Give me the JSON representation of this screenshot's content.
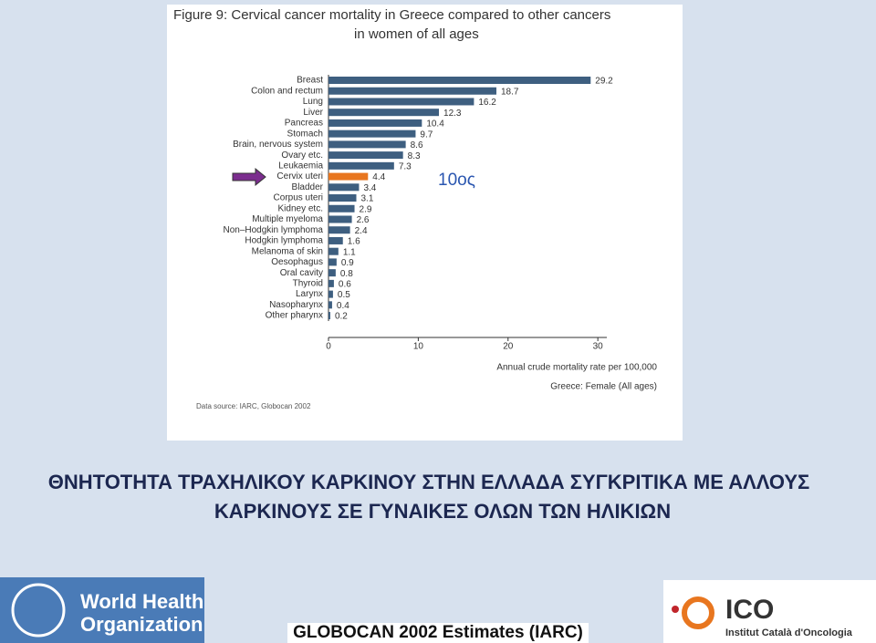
{
  "chart_data": {
    "type": "barh",
    "title": [
      "Figure 9: Cervical cancer mortality in Greece compared to other cancers",
      "in women of all ages"
    ],
    "categories": [
      "Breast",
      "Colon and rectum",
      "Lung",
      "Liver",
      "Pancreas",
      "Stomach",
      "Brain, nervous system",
      "Ovary etc.",
      "Leukaemia",
      "Cervix uteri",
      "Bladder",
      "Corpus uteri",
      "Kidney etc.",
      "Multiple myeloma",
      "Non–Hodgkin lymphoma",
      "Hodgkin lymphoma",
      "Melanoma of skin",
      "Oesophagus",
      "Oral cavity",
      "Thyroid",
      "Larynx",
      "Nasopharynx",
      "Other pharynx"
    ],
    "values": [
      29.2,
      18.7,
      16.2,
      12.3,
      10.4,
      9.7,
      8.6,
      8.3,
      7.3,
      4.4,
      3.4,
      3.1,
      2.9,
      2.6,
      2.4,
      1.6,
      1.1,
      0.9,
      0.8,
      0.6,
      0.5,
      0.4,
      0.2
    ],
    "colors": [
      "#3e5f80",
      "#3e5f80",
      "#3e5f80",
      "#3e5f80",
      "#3e5f80",
      "#3e5f80",
      "#3e5f80",
      "#3e5f80",
      "#3e5f80",
      "#e8761f",
      "#3e5f80",
      "#3e5f80",
      "#3e5f80",
      "#3e5f80",
      "#3e5f80",
      "#3e5f80",
      "#3e5f80",
      "#3e5f80",
      "#3e5f80",
      "#3e5f80",
      "#3e5f80",
      "#3e5f80",
      "#3e5f80"
    ],
    "xlim": [
      0,
      31
    ],
    "xticks": [
      0,
      10,
      20,
      30
    ],
    "xlabel": "Annual crude mortality rate per 100,000",
    "subtitle": "Greece: Female (All ages)",
    "source": "Data source: IARC, Globocan 2002",
    "annotation": "10ος"
  },
  "slide": {
    "title_lines": [
      "ΘΝΗΤΟΤΗΤΑ ΤΡΑΧΗΛΙΚΟΥ ΚΑΡΚΙΝΟΥ ΣΤΗΝ ΕΛΛΑΔΑ ΣΥΓΚΡΙΤΙΚΑ ΜΕ ΑΛΛΟΥΣ",
      "ΚΑΡΚΙΝΟΥΣ ΣΕ ΓΥΝΑΙΚΕΣ ΟΛΩΝ ΤΩΝ ΗΛΙΚΙΩΝ"
    ],
    "footer": "GLOBOCAN 2002 Estimates (IARC)",
    "who": [
      "World Health",
      "Organization"
    ],
    "ico": [
      "ICO",
      "Institut Català d'Oncologia"
    ]
  }
}
